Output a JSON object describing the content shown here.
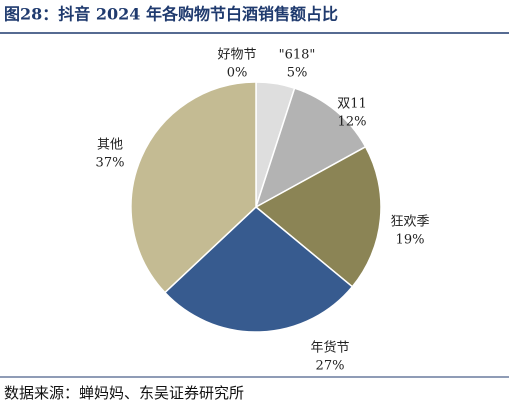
{
  "chart_data": {
    "type": "pie",
    "title": "图28：抖音 2024 年各购物节白酒销售额占比",
    "categories": [
      "好物节",
      "\"618\"",
      "双11",
      "狂欢季",
      "年货节",
      "其他"
    ],
    "values": [
      0,
      5,
      12,
      19,
      27,
      37
    ],
    "value_labels": [
      "0%",
      "5%",
      "12%",
      "19%",
      "27%",
      "37%"
    ],
    "colors": [
      "#1f2f4f",
      "#dedede",
      "#b3b3b3",
      "#8b8455",
      "#375b8f",
      "#c4bb93"
    ],
    "source": "数据来源：蝉妈妈、东吴证券研究所"
  }
}
